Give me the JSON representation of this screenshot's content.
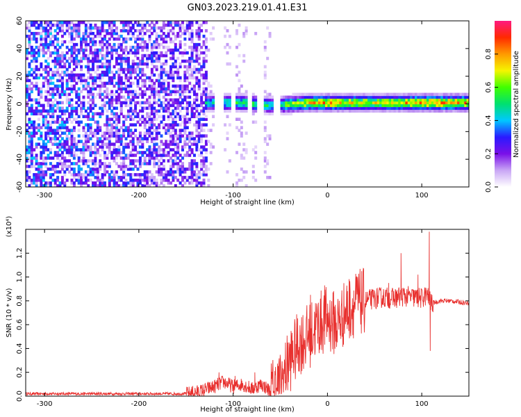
{
  "figure_title": "GN03.2023.219.01.41.E31",
  "chart_data": [
    {
      "type": "heatmap",
      "title": "GN03.2023.219.01.41.E31",
      "xlabel": "Height of straight line (km)",
      "ylabel": "Frequency (Hz)",
      "xlim": [
        -320,
        150
      ],
      "ylim": [
        -60,
        60
      ],
      "x_ticks": [
        -300,
        -200,
        -100,
        0,
        100
      ],
      "y_ticks": [
        -60,
        -40,
        -20,
        0,
        20,
        40,
        60
      ],
      "colorbar": {
        "label": "Normalized spectral amplitude",
        "range": [
          0,
          1
        ],
        "ticks": [
          0.0,
          0.2,
          0.4,
          0.6,
          0.8
        ],
        "colormap": [
          "#ffffff",
          "#c9a6f5",
          "#7a10e8",
          "#2a1aff",
          "#00c8ff",
          "#00e070",
          "#40ff00",
          "#f5f500",
          "#ff9a00",
          "#ff2a00",
          "#ff1a80"
        ]
      },
      "description_points": [
        {
          "x": -320,
          "noise_amp": 0.45
        },
        {
          "x": -150,
          "noise_amp": 0.35
        },
        {
          "x": -130,
          "signal_freq": 0,
          "signal_amp": 0.45
        },
        {
          "x": -90,
          "signal_freq": 0,
          "signal_amp": 0.55
        },
        {
          "x": -60,
          "signal_freq": -2,
          "signal_amp": 0.5
        },
        {
          "x": -20,
          "signal_freq": 0,
          "signal_amp": 0.75
        },
        {
          "x": 0,
          "signal_freq": 0,
          "signal_amp": 0.8
        },
        {
          "x": 50,
          "signal_freq": 0,
          "signal_amp": 0.7
        },
        {
          "x": 100,
          "signal_freq": 0,
          "signal_amp": 0.85
        },
        {
          "x": 150,
          "signal_freq": 0,
          "signal_amp": 0.8
        }
      ],
      "gaps_x": [
        [
          -122,
          -112
        ],
        [
          -104,
          -100
        ],
        [
          -86,
          -82
        ],
        [
          -75,
          -70
        ],
        [
          -58,
          -52
        ]
      ]
    },
    {
      "type": "line",
      "xlabel": "Height of straight line (km)",
      "ylabel": "SNR (10 * v/v)",
      "y_multiplier": "(x10⁴)",
      "xlim": [
        -320,
        150
      ],
      "ylim": [
        0,
        1.4
      ],
      "x_ticks": [
        -300,
        -200,
        -100,
        0,
        100
      ],
      "y_ticks": [
        0.0,
        0.2,
        0.4,
        0.6,
        0.8,
        1.0,
        1.2
      ],
      "color": "#e8302e",
      "series": [
        {
          "x": [
            -320,
            -250,
            -180,
            -150,
            -135,
            -120,
            -110,
            -100,
            -90,
            -80,
            -70,
            -60,
            -50,
            -40,
            -30,
            -20,
            -10,
            0,
            10,
            20,
            30,
            40,
            50,
            60,
            70,
            80,
            90,
            100,
            105,
            110,
            120,
            130,
            140,
            150
          ],
          "values": [
            0.02,
            0.02,
            0.02,
            0.02,
            0.04,
            0.08,
            0.12,
            0.08,
            0.1,
            0.06,
            0.1,
            0.04,
            0.1,
            0.3,
            0.45,
            0.5,
            0.6,
            0.65,
            0.6,
            0.72,
            0.78,
            0.8,
            0.82,
            0.83,
            0.82,
            0.84,
            0.83,
            0.82,
            0.85,
            0.78,
            0.8,
            0.8,
            0.79,
            0.78
          ]
        }
      ],
      "spikes": [
        {
          "x": -115,
          "value": 0.2
        },
        {
          "x": -98,
          "value": 0.17
        },
        {
          "x": -77,
          "value": 0.2
        },
        {
          "x": -42,
          "value": 0.45
        },
        {
          "x": -20,
          "value": 0.65
        },
        {
          "x": -18,
          "value": 0.85
        },
        {
          "x": -3,
          "value": 0.93
        },
        {
          "x": 32,
          "value": 1.0
        },
        {
          "x": 65,
          "value": 0.95
        },
        {
          "x": 78,
          "value": 1.2
        },
        {
          "x": 108,
          "value": 1.38
        },
        {
          "x": 109,
          "value": 0.38
        },
        {
          "x": 96,
          "value": 1.02
        }
      ]
    }
  ]
}
